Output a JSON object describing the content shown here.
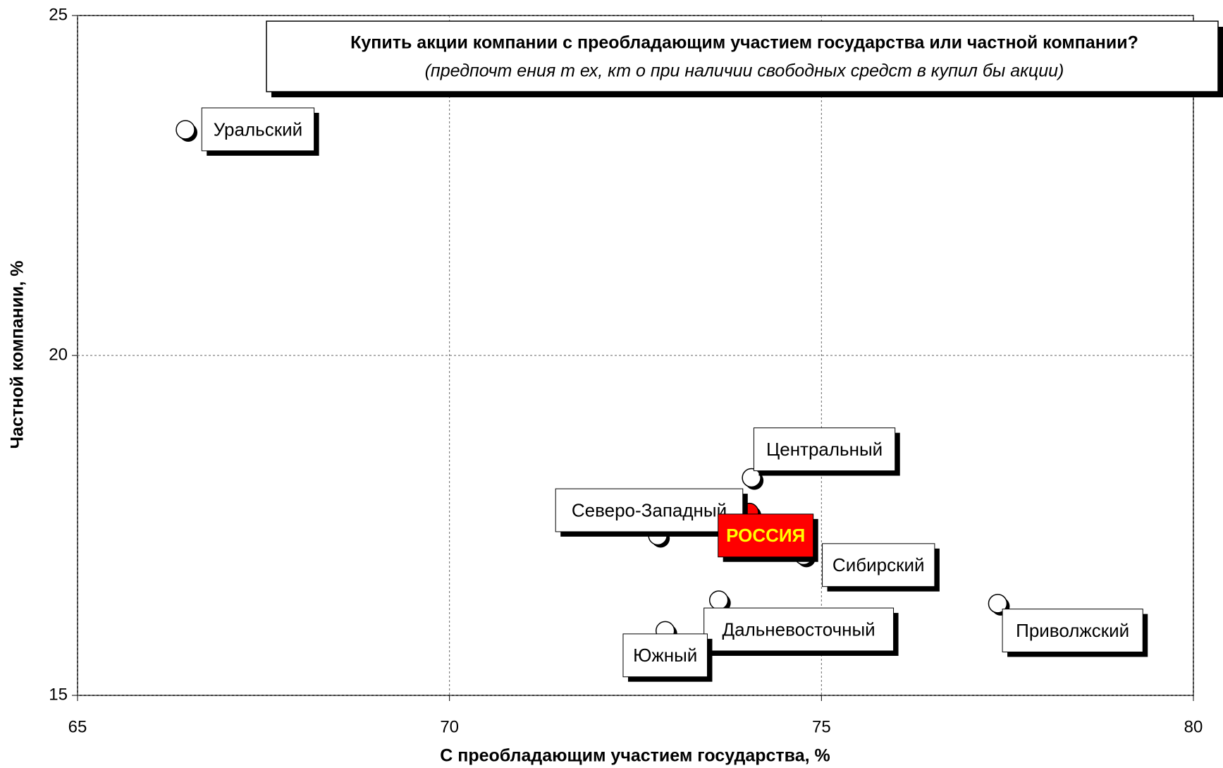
{
  "chart_data": {
    "type": "scatter",
    "title": "Купить акции компании с преобладающим участием государства или частной компании?",
    "subtitle": "(предпочт ения т ех, кт о при  наличии свободных средст в купил бы акции)",
    "x_label": "С преобладающим участием государства, %",
    "y_label": "Частной компании, %",
    "labels": [
      "Уральский",
      "Центральный",
      "Северо-Западный",
      "Сибирский",
      "Дальневосточный",
      "Южный",
      "Приволжский",
      "РОССИЯ"
    ],
    "x": [
      66.45,
      74.06,
      72.8,
      74.76,
      73.62,
      72.9,
      77.37,
      74.03
    ],
    "values": [
      23.32,
      18.2,
      17.35,
      17.06,
      16.4,
      15.95,
      16.35,
      17.69
    ],
    "colors": [
      "#ffffff",
      "#ffffff",
      "#ffffff",
      "#ffffff",
      "#ffffff",
      "#ffffff",
      "#ffffff",
      "#ff0000"
    ],
    "xlim": [
      65,
      80
    ],
    "xticks": [
      65,
      70,
      75,
      80
    ],
    "ylim": [
      15,
      25
    ],
    "yticks": [
      15,
      20,
      25
    ],
    "grid": true
  }
}
